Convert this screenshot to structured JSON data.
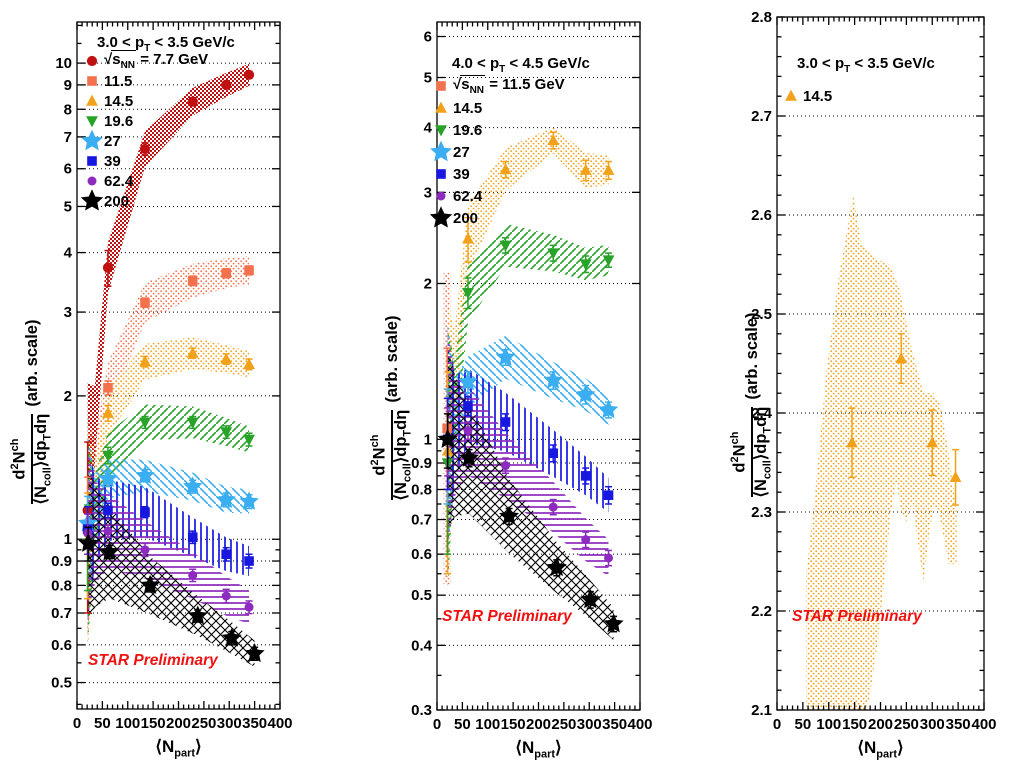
{
  "figure": {
    "background": "#ffffff",
    "annotation_color": "#f01010",
    "xlabel": "⟨N[part]⟩",
    "ylabel_numerator": "d{2}N{ch}",
    "ylabel_denominator": "⟨N[coll]⟩dp[T]dη",
    "ylabel_suffix": "(arb. scale)"
  },
  "chart_data": [
    {
      "type": "scatter",
      "title": "3.0 < p[T] < 3.5 GeV/c",
      "annotation": "STAR Preliminary",
      "xlabel": "⟨N[part]⟩",
      "ylabel": "d2Nch/(<Ncoll>dpTdeta) (arb. scale)",
      "yscale": "log",
      "xlim": [
        0,
        400
      ],
      "ylim": [
        0.44,
        12.2
      ],
      "xticks": [
        0,
        50,
        100,
        150,
        200,
        250,
        300,
        350,
        400
      ],
      "yticks": [
        0.5,
        0.6,
        0.7,
        0.8,
        0.9,
        1,
        2,
        3,
        4,
        5,
        6,
        7,
        8,
        9,
        10
      ],
      "gridlines": [
        0.5,
        0.6,
        0.7,
        0.8,
        0.9,
        1,
        2,
        3,
        4,
        5,
        6,
        7,
        8,
        9,
        10
      ],
      "grid": true,
      "legend_position": "top-left",
      "series": [
        {
          "name": "7.7",
          "legend": {
            "sqrt": "s[NN]",
            "text": " = 7.7 GeV"
          },
          "marker": "circle",
          "msize": 1,
          "color": "#bf1111",
          "hatch": "checker",
          "x": [
            21,
            61,
            134,
            228,
            294,
            339
          ],
          "y": [
            1.15,
            3.72,
            6.6,
            8.3,
            9.0,
            9.45
          ],
          "ey": [
            0.45,
            0.32,
            0.2,
            0.16,
            0.15,
            0.15
          ],
          "band_factor": [
            1.85,
            1.13,
            1.09,
            1.07,
            1.06,
            1.055
          ]
        },
        {
          "name": "11.5",
          "legend": {
            "text": "11.5"
          },
          "marker": "square",
          "msize": 1,
          "color": "#f4714d",
          "hatch": "dots",
          "x": [
            21,
            61,
            134,
            228,
            294,
            339
          ],
          "y": [
            1.05,
            2.08,
            3.14,
            3.49,
            3.62,
            3.67
          ],
          "ey": [
            0.3,
            0.07,
            0.07,
            0.08,
            0.08,
            0.08
          ],
          "band_factor": [
            1.75,
            1.13,
            1.1,
            1.085,
            1.075,
            1.07
          ]
        },
        {
          "name": "14.5",
          "legend": {
            "text": "14.5"
          },
          "marker": "triangle-up",
          "msize": 1,
          "color": "#f2a21a",
          "hatch": "dots",
          "x": [
            21,
            61,
            134,
            228,
            294,
            339
          ],
          "y": [
            1.0,
            1.84,
            2.36,
            2.46,
            2.39,
            2.33
          ],
          "ey": [
            0.25,
            0.07,
            0.06,
            0.06,
            0.06,
            0.06
          ],
          "band_factor": [
            1.7,
            1.12,
            1.09,
            1.08,
            1.07,
            1.065
          ]
        },
        {
          "name": "19.6",
          "legend": {
            "text": "19.6"
          },
          "marker": "triangle-down",
          "msize": 1,
          "color": "#27a327",
          "hatch": "diag-up",
          "x": [
            21,
            61,
            134,
            228,
            294,
            339
          ],
          "y": [
            0.98,
            1.5,
            1.76,
            1.76,
            1.68,
            1.62
          ],
          "ey": [
            0.2,
            0.06,
            0.05,
            0.05,
            0.05,
            0.05
          ],
          "band_factor": [
            1.65,
            1.12,
            1.09,
            1.08,
            1.07,
            1.065
          ]
        },
        {
          "name": "27",
          "legend": {
            "text": "27"
          },
          "marker": "star",
          "msize": 1,
          "color": "#3aaef0",
          "hatch": "diag-down",
          "x": [
            21,
            61,
            134,
            228,
            294,
            339
          ],
          "y": [
            1.08,
            1.34,
            1.36,
            1.29,
            1.21,
            1.2
          ],
          "ey": [
            0.15,
            0.05,
            0.04,
            0.04,
            0.04,
            0.04
          ],
          "band_factor": [
            1.55,
            1.1,
            1.08,
            1.07,
            1.065,
            1.06
          ]
        },
        {
          "name": "39",
          "legend": {
            "text": "39"
          },
          "marker": "square",
          "msize": 1,
          "color": "#1717e0",
          "hatch": "vert",
          "x": [
            21,
            61,
            134,
            228,
            294,
            339
          ],
          "y": [
            1.05,
            1.15,
            1.14,
            1.01,
            0.93,
            0.9
          ],
          "ey": [
            0.12,
            0.04,
            0.03,
            0.03,
            0.03,
            0.03
          ],
          "band_factor": [
            1.55,
            1.16,
            1.13,
            1.1,
            1.085,
            1.075
          ]
        },
        {
          "name": "62.4",
          "legend": {
            "text": "62.4"
          },
          "marker": "circle",
          "msize": 0.88,
          "color": "#8d2abf",
          "hatch": "horiz",
          "x": [
            21,
            61,
            134,
            228,
            294,
            339
          ],
          "y": [
            1.03,
            1.04,
            0.95,
            0.84,
            0.76,
            0.72
          ],
          "ey": [
            0.1,
            0.03,
            0.03,
            0.025,
            0.025,
            0.022
          ],
          "band_factor": [
            1.5,
            1.2,
            1.15,
            1.12,
            1.1,
            1.085
          ]
        },
        {
          "name": "200",
          "legend": {
            "text": "200"
          },
          "marker": "star",
          "msize": 1.03,
          "color": "#000000",
          "hatch": "cross",
          "x": [
            22,
            64,
            144,
            238,
            305,
            350
          ],
          "y": [
            0.98,
            0.94,
            0.8,
            0.69,
            0.62,
            0.575
          ],
          "ey": [
            0.08,
            0.03,
            0.025,
            0.02,
            0.02,
            0.018
          ],
          "band_factor": [
            1.45,
            1.25,
            1.15,
            1.1,
            1.08,
            1.065
          ]
        }
      ]
    },
    {
      "type": "scatter",
      "title": "4.0 < p[T] < 4.5 GeV/c",
      "annotation": "STAR Preliminary",
      "xlabel": "⟨N[part]⟩",
      "ylabel": "d2Nch/(<Ncoll>dpTdeta) (arb. scale)",
      "yscale": "log",
      "xlim": [
        0,
        400
      ],
      "ylim": [
        0.3,
        6.4
      ],
      "xticks": [
        0,
        50,
        100,
        150,
        200,
        250,
        300,
        350,
        400
      ],
      "yticks": [
        0.3,
        0.4,
        0.5,
        0.6,
        0.7,
        0.8,
        0.9,
        1,
        2,
        3,
        4,
        5,
        6
      ],
      "gridlines": [
        0.4,
        0.5,
        0.6,
        0.7,
        0.8,
        0.9,
        1,
        2,
        3,
        4,
        5,
        6
      ],
      "grid": true,
      "legend_position": "top-left",
      "series": [
        {
          "name": "11.5",
          "legend": {
            "sqrt": "s[NN]",
            "text": " = 11.5 GeV"
          },
          "marker": "square",
          "msize": 1,
          "color": "#f4714d",
          "hatch": "dots",
          "x": [
            20
          ],
          "y": [
            1.05
          ],
          "ey": [
            0.45
          ],
          "band_factor": [
            2.0
          ]
        },
        {
          "name": "14.5",
          "legend": {
            "text": "14.5"
          },
          "marker": "triangle-up",
          "msize": 1,
          "color": "#f2a21a",
          "hatch": "dots",
          "x": [
            21,
            61,
            135,
            229,
            293,
            338
          ],
          "y": [
            0.95,
            2.44,
            3.32,
            3.78,
            3.31,
            3.31
          ],
          "ey": [
            0.4,
            0.24,
            0.12,
            0.14,
            0.15,
            0.13
          ],
          "band_factor": [
            1.9,
            1.16,
            1.1,
            1.06,
            1.08,
            1.07
          ]
        },
        {
          "name": "19.6",
          "legend": {
            "text": "19.6"
          },
          "marker": "triangle-down",
          "msize": 1,
          "color": "#27a327",
          "hatch": "diag-up",
          "x": [
            21,
            61,
            135,
            229,
            293,
            338
          ],
          "y": [
            0.9,
            1.92,
            2.37,
            2.29,
            2.18,
            2.22
          ],
          "ey": [
            0.3,
            0.13,
            0.08,
            0.08,
            0.08,
            0.07
          ],
          "band_factor": [
            1.8,
            1.14,
            1.1,
            1.085,
            1.075,
            1.07
          ]
        },
        {
          "name": "27",
          "legend": {
            "text": "27"
          },
          "marker": "star",
          "msize": 1,
          "color": "#3aaef0",
          "hatch": "diag-down",
          "x": [
            21,
            61,
            135,
            229,
            293,
            338
          ],
          "y": [
            1.0,
            1.29,
            1.44,
            1.3,
            1.22,
            1.14
          ],
          "ey": [
            0.25,
            0.06,
            0.05,
            0.05,
            0.05,
            0.04
          ],
          "band_factor": [
            1.7,
            1.12,
            1.1,
            1.085,
            1.075,
            1.07
          ]
        },
        {
          "name": "39",
          "legend": {
            "text": "39"
          },
          "marker": "square",
          "msize": 1,
          "color": "#1717e0",
          "hatch": "vert",
          "x": [
            21,
            61,
            135,
            229,
            293,
            338
          ],
          "y": [
            1.0,
            1.16,
            1.08,
            0.94,
            0.85,
            0.78
          ],
          "ey": [
            0.2,
            0.05,
            0.04,
            0.035,
            0.03,
            0.03
          ],
          "band_factor": [
            1.65,
            1.18,
            1.14,
            1.11,
            1.09,
            1.08
          ]
        },
        {
          "name": "62.4",
          "legend": {
            "text": "62.4"
          },
          "marker": "circle",
          "msize": 0.88,
          "color": "#8d2abf",
          "hatch": "horiz",
          "x": [
            21,
            61,
            135,
            229,
            293,
            338
          ],
          "y": [
            1.0,
            1.04,
            0.89,
            0.74,
            0.64,
            0.59
          ],
          "ey": [
            0.15,
            0.04,
            0.03,
            0.025,
            0.022,
            0.02
          ],
          "band_factor": [
            1.6,
            1.22,
            1.16,
            1.12,
            1.1,
            1.085
          ]
        },
        {
          "name": "200",
          "legend": {
            "text": "200"
          },
          "marker": "star",
          "msize": 1.03,
          "color": "#000000",
          "hatch": "cross",
          "x": [
            21,
            63,
            142,
            236,
            302,
            348
          ],
          "y": [
            1.0,
            0.92,
            0.71,
            0.565,
            0.49,
            0.44
          ],
          "ey": [
            0.12,
            0.035,
            0.025,
            0.02,
            0.018,
            0.015
          ],
          "band_factor": [
            1.5,
            1.28,
            1.18,
            1.12,
            1.09,
            1.075
          ]
        }
      ]
    },
    {
      "type": "scatter",
      "title": "3.0 < p[T] < 3.5 GeV/c",
      "annotation": "STAR Preliminary",
      "xlabel": "⟨N[part]⟩",
      "ylabel": "d2Nch/(<Ncoll>dpTdeta) (arb. scale)",
      "yscale": "linear",
      "xlim": [
        0,
        400
      ],
      "ylim": [
        2.1,
        2.8
      ],
      "xticks": [
        0,
        50,
        100,
        150,
        200,
        250,
        300,
        350,
        400
      ],
      "yticks": [
        2.1,
        2.2,
        2.3,
        2.4,
        2.5,
        2.6,
        2.7,
        2.8
      ],
      "ytick_minor_step": 0.02,
      "gridlines": [
        2.2,
        2.3,
        2.4,
        2.5,
        2.6,
        2.7
      ],
      "grid": true,
      "legend_position": "top-left",
      "series": [
        {
          "name": "14.5",
          "legend": {
            "text": "14.5"
          },
          "marker": "triangle-up",
          "msize": 1,
          "color": "#f2a21a",
          "hatch": "dots",
          "x": [
            145,
            240,
            300,
            345
          ],
          "y": [
            2.37,
            2.455,
            2.37,
            2.335
          ],
          "ey": [
            0.035,
            0.025,
            0.033,
            0.028
          ],
          "band": {
            "top": [
              [
                57,
                2.24
              ],
              [
                72,
                2.31
              ],
              [
                95,
                2.44
              ],
              [
                120,
                2.54
              ],
              [
                148,
                2.62
              ],
              [
                163,
                2.57
              ],
              [
                192,
                2.555
              ],
              [
                218,
                2.55
              ],
              [
                237,
                2.525
              ],
              [
                258,
                2.47
              ],
              [
                283,
                2.42
              ],
              [
                302,
                2.42
              ],
              [
                315,
                2.41
              ],
              [
                330,
                2.365
              ],
              [
                347,
                2.3
              ]
            ],
            "bottom": [
              [
                57,
                2.085
              ],
              [
                150,
                2.085
              ],
              [
                163,
                2.09
              ],
              [
                178,
                2.11
              ],
              [
                195,
                2.17
              ],
              [
                207,
                2.23
              ],
              [
                220,
                2.3
              ],
              [
                231,
                2.33
              ],
              [
                240,
                2.3
              ],
              [
                250,
                2.29
              ],
              [
                262,
                2.31
              ],
              [
                272,
                2.27
              ],
              [
                283,
                2.23
              ],
              [
                292,
                2.27
              ],
              [
                302,
                2.305
              ],
              [
                313,
                2.3
              ],
              [
                322,
                2.275
              ],
              [
                333,
                2.245
              ],
              [
                347,
                2.25
              ]
            ]
          }
        }
      ]
    }
  ]
}
